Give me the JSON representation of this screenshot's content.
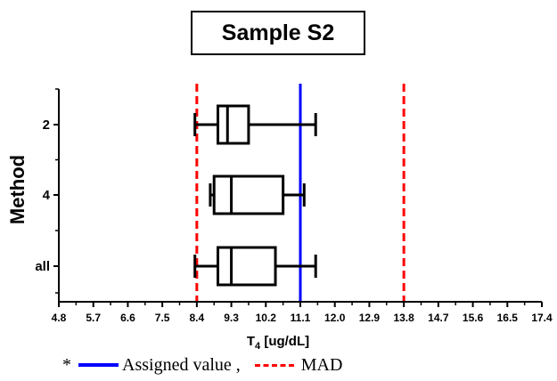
{
  "chart_data": {
    "type": "boxplot",
    "title": "Sample S2",
    "xlabel_main": "T",
    "xlabel_sub": "4",
    "xlabel_rest": " [ug/dL]",
    "ylabel": "Method",
    "xlim": [
      4.8,
      17.4
    ],
    "xticks": [
      "4.8",
      "5.7",
      "6.6",
      "7.5",
      "8.4",
      "9.3",
      "10.2",
      "11.1",
      "12.0",
      "12.9",
      "13.8",
      "14.7",
      "15.6",
      "16.5",
      "17.4"
    ],
    "categories": [
      "2",
      "4",
      "all"
    ],
    "boxes": [
      {
        "label": "2",
        "min": 8.35,
        "q1": 8.95,
        "median": 9.2,
        "q3": 9.75,
        "max": 11.5
      },
      {
        "label": "4",
        "min": 8.75,
        "q1": 8.85,
        "median": 9.3,
        "q3": 10.65,
        "max": 11.2
      },
      {
        "label": "all",
        "min": 8.35,
        "q1": 8.95,
        "median": 9.3,
        "q3": 10.45,
        "max": 11.5
      }
    ],
    "reference_lines": [
      {
        "name": "Assigned value",
        "value": 11.1,
        "color": "#0000ff",
        "style": "solid"
      },
      {
        "name": "MAD",
        "value": 8.4,
        "color": "#ff0000",
        "style": "dashed"
      },
      {
        "name": "MAD",
        "value": 13.8,
        "color": "#ff0000",
        "style": "dashed"
      }
    ],
    "legend": {
      "prefix": "*",
      "items": [
        {
          "label": "Assigned value ,",
          "color": "#0000ff",
          "style": "solid"
        },
        {
          "label": "MAD",
          "color": "#ff0000",
          "style": "dashed"
        }
      ]
    }
  }
}
